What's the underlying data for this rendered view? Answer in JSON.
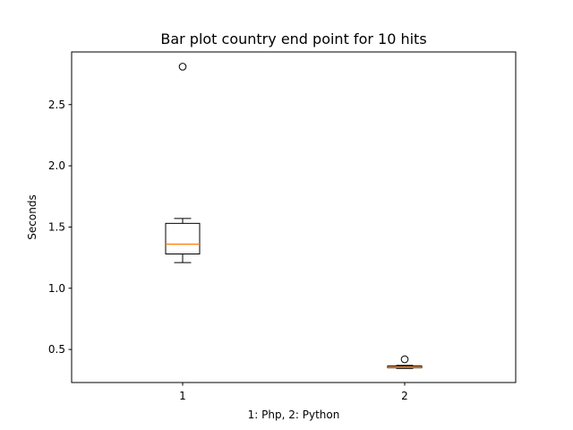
{
  "chart_data": {
    "type": "box",
    "title": "Bar plot country end point for 10 hits",
    "xlabel": "1: Php, 2: Python",
    "ylabel": "Seconds",
    "ylim": [
      0.23,
      2.93
    ],
    "yticks": [
      0.5,
      1.0,
      1.5,
      2.0,
      2.5
    ],
    "ytick_labels": [
      "0.5",
      "1.0",
      "1.5",
      "2.0",
      "2.5"
    ],
    "xlim": [
      0.5,
      2.5
    ],
    "grid": false,
    "colors": {
      "median": "#ff7f0e",
      "box": "#000000"
    },
    "series": [
      {
        "x": 1,
        "tick_label": "1",
        "whisker_low": 1.21,
        "q1": 1.28,
        "median": 1.36,
        "q3": 1.53,
        "whisker_high": 1.57,
        "outliers": [
          2.81
        ]
      },
      {
        "x": 2,
        "tick_label": "2",
        "whisker_low": 0.345,
        "q1": 0.35,
        "median": 0.355,
        "q3": 0.365,
        "whisker_high": 0.37,
        "outliers": [
          0.42
        ]
      }
    ]
  }
}
